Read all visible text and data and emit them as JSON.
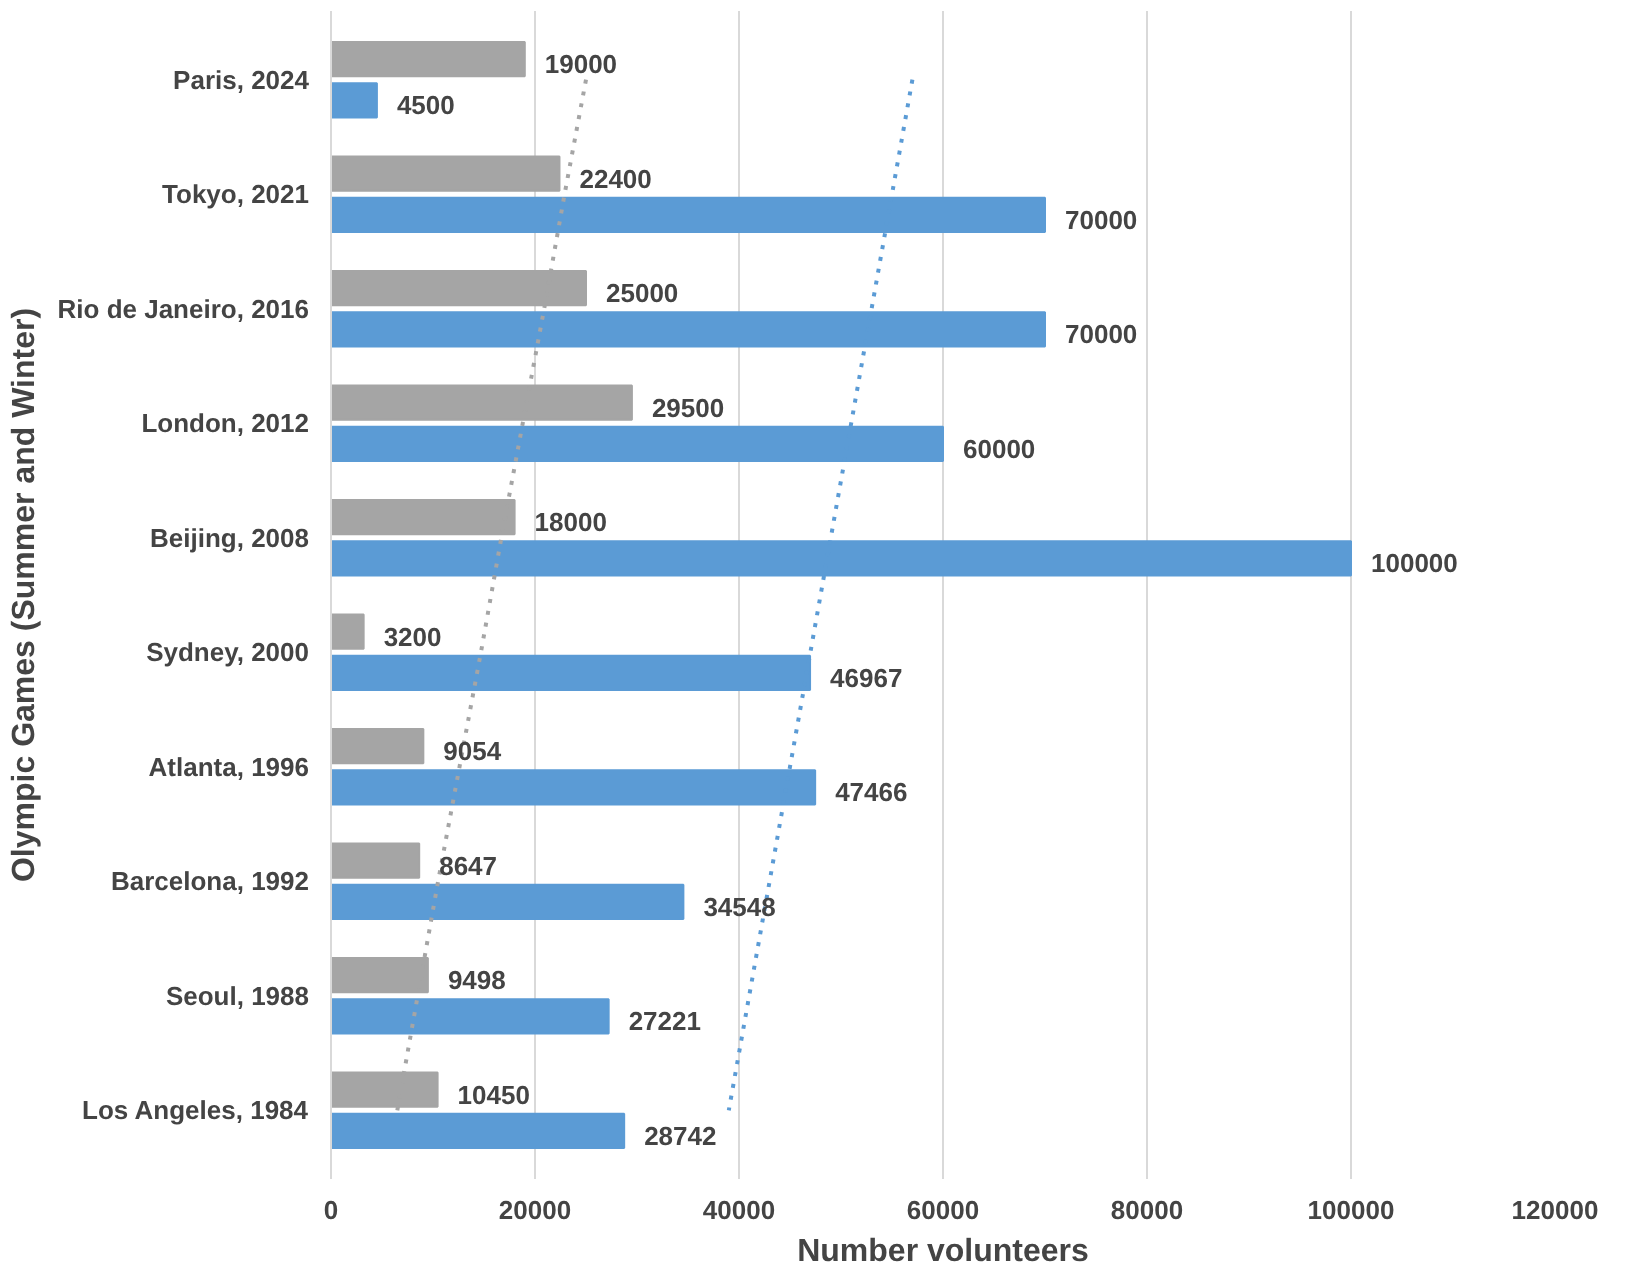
{
  "chart_data": {
    "type": "bar",
    "orientation": "horizontal",
    "xlabel": "Number volunteers",
    "ylabel": "Olympic Games (Summer and Winter)",
    "categories": [
      "Paris, 2024",
      "Tokyo, 2021",
      "Rio de Janeiro, 2016",
      "London, 2012",
      "Beijing, 2008",
      "Sydney, 2000",
      "Atlanta, 1996",
      "Barcelona, 1992",
      "Seoul, 1988",
      "Los Angeles, 1984"
    ],
    "series": [
      {
        "color": "#a5a5a5",
        "values": [
          19000,
          22400,
          25000,
          29500,
          18000,
          3200,
          9054,
          8647,
          9498,
          10450
        ],
        "value_labels": [
          "19000",
          "22400",
          "25000",
          "29500",
          "18000",
          "3200",
          "9054",
          "8647",
          "9498",
          "10450"
        ]
      },
      {
        "color": "#5b9bd5",
        "values": [
          4500,
          70000,
          70000,
          60000,
          100000,
          46967,
          47466,
          34548,
          27221,
          28742
        ],
        "value_labels": [
          "4500",
          "70000",
          "70000",
          "60000",
          "100000",
          "46967",
          "47466",
          "34548",
          "27221",
          "28742"
        ]
      },
      {
        "type": "line",
        "line_style": "dotted",
        "color": "#a5a5a5",
        "values": [
          25000,
          22900,
          20900,
          18800,
          16700,
          14700,
          12600,
          10500,
          8500,
          6500
        ]
      },
      {
        "type": "line",
        "line_style": "dotted",
        "color": "#5b9bd5",
        "values": [
          57000,
          55000,
          53000,
          51000,
          49000,
          47000,
          45000,
          43000,
          41000,
          39000
        ]
      }
    ],
    "xlim": [
      0,
      120000
    ],
    "xticks": [
      0,
      20000,
      40000,
      60000,
      80000,
      100000,
      120000
    ],
    "grid": "x"
  }
}
